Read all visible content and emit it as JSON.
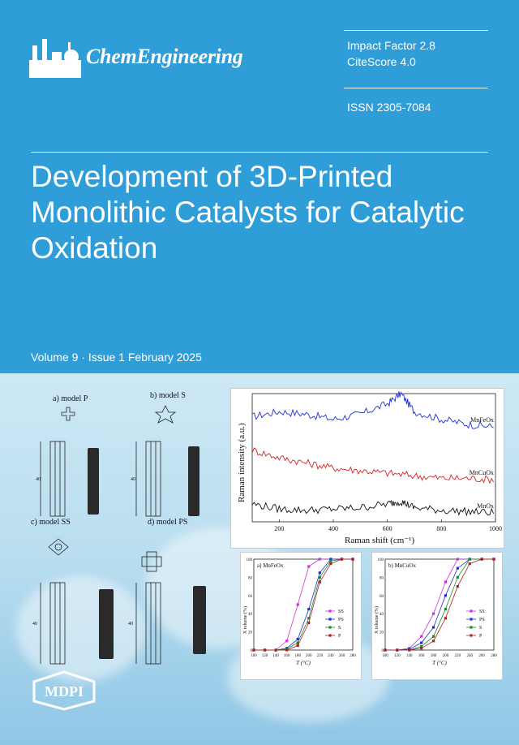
{
  "journal": {
    "name": "ChemEngineering",
    "impact_factor": "Impact Factor 2.8",
    "citescore": "CiteScore 4.0",
    "issn": "ISSN 2305-7084",
    "logo_icon": "factory-icon",
    "publisher": "MDPI"
  },
  "article": {
    "title": "Development of 3D-Printed Monolithic Catalysts for Catalytic Oxidation"
  },
  "issue": {
    "line": "Volume 9 · Issue 1 February 2025"
  },
  "colors": {
    "cover_blue": "#2f9ed8",
    "text_white": "#ffffff",
    "mnfeo_line": "#1f2fd6",
    "mncuo_line": "#d62020",
    "mno_line": "#111111",
    "ss": "#d033d8",
    "ps": "#1f2fd6",
    "s": "#1a8a2a",
    "p": "#b02020"
  },
  "models": {
    "p": "a) model P",
    "s": "b) model S",
    "ss": "c) model SS",
    "ps": "d) model PS",
    "height_label": "40"
  },
  "chart_data": [
    {
      "type": "line",
      "xlabel": "Raman shift (cm⁻¹)",
      "ylabel": "Raman intensity (a.u.)",
      "xlim": [
        100,
        1000
      ],
      "x_ticks": [
        "200",
        "400",
        "600",
        "800",
        "1000"
      ],
      "series": [
        {
          "name": "MnFeOx",
          "x": [
            100,
            200,
            300,
            400,
            500,
            600,
            650,
            700,
            800,
            900,
            1000
          ],
          "values": [
            0.82,
            0.86,
            0.84,
            0.8,
            0.84,
            0.92,
            1.0,
            0.86,
            0.8,
            0.76,
            0.74
          ]
        },
        {
          "name": "MnCuOx",
          "x": [
            100,
            200,
            300,
            400,
            500,
            600,
            700,
            800,
            900,
            1000
          ],
          "values": [
            0.56,
            0.5,
            0.46,
            0.42,
            0.4,
            0.38,
            0.36,
            0.34,
            0.34,
            0.33
          ]
        },
        {
          "name": "MnOx",
          "x": [
            100,
            200,
            300,
            400,
            500,
            600,
            650,
            700,
            800,
            900,
            1000
          ],
          "values": [
            0.14,
            0.1,
            0.09,
            0.1,
            0.11,
            0.14,
            0.16,
            0.11,
            0.09,
            0.08,
            0.07
          ]
        }
      ]
    },
    {
      "type": "line",
      "title": "a) MnFeOx",
      "xlabel": "T (°C)",
      "ylabel": "X toluene (%)",
      "xlim": [
        100,
        280
      ],
      "ylim": [
        0,
        100
      ],
      "x": [
        100,
        120,
        140,
        160,
        180,
        200,
        220,
        240,
        260,
        280
      ],
      "x_ticks": [
        "100",
        "120",
        "140",
        "160",
        "180",
        "200",
        "220",
        "240",
        "260",
        "280"
      ],
      "y_ticks": [
        "0",
        "20",
        "40",
        "60",
        "80",
        "100"
      ],
      "series": [
        {
          "name": "SS",
          "values": [
            0,
            0,
            0,
            10,
            50,
            92,
            100,
            100,
            100,
            100
          ]
        },
        {
          "name": "PS",
          "values": [
            0,
            0,
            0,
            2,
            12,
            45,
            85,
            100,
            100,
            100
          ]
        },
        {
          "name": "S",
          "values": [
            0,
            0,
            0,
            1,
            8,
            35,
            80,
            98,
            100,
            100
          ]
        },
        {
          "name": "P",
          "values": [
            0,
            0,
            0,
            0,
            5,
            30,
            75,
            95,
            100,
            100
          ]
        }
      ]
    },
    {
      "type": "line",
      "title": "b) MnCuOx",
      "xlabel": "T (°C)",
      "ylabel": "X toluene (%)",
      "xlim": [
        100,
        280
      ],
      "ylim": [
        0,
        100
      ],
      "x": [
        100,
        120,
        140,
        160,
        180,
        200,
        220,
        240,
        260,
        280
      ],
      "x_ticks": [
        "100",
        "120",
        "140",
        "160",
        "180",
        "200",
        "220",
        "240",
        "260",
        "280"
      ],
      "y_ticks": [
        "0",
        "20",
        "40",
        "60",
        "80",
        "100"
      ],
      "series": [
        {
          "name": "SS",
          "values": [
            0,
            0,
            2,
            15,
            40,
            75,
            100,
            100,
            100,
            100
          ]
        },
        {
          "name": "PS",
          "values": [
            0,
            0,
            1,
            8,
            25,
            60,
            90,
            100,
            100,
            100
          ]
        },
        {
          "name": "S",
          "values": [
            0,
            0,
            0,
            4,
            15,
            45,
            80,
            100,
            100,
            100
          ]
        },
        {
          "name": "P",
          "values": [
            0,
            0,
            0,
            2,
            10,
            35,
            70,
            95,
            100,
            100
          ]
        }
      ]
    }
  ]
}
